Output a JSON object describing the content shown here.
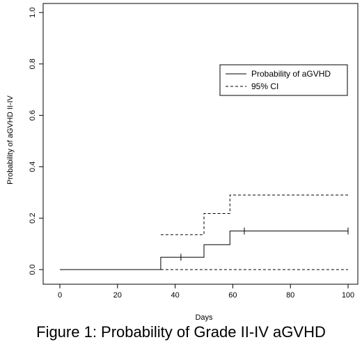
{
  "caption": "Figure 1: Probability of Grade II-IV aGVHD",
  "chart_data": {
    "type": "line",
    "step": true,
    "xlabel": "Days",
    "ylabel": "Probability of aGVHD II-IV",
    "xlim": [
      0,
      100
    ],
    "ylim": [
      0,
      1
    ],
    "x_ticks": [
      "0",
      "20",
      "40",
      "60",
      "80",
      "100"
    ],
    "y_ticks": [
      "0.0",
      "0.2",
      "0.4",
      "0.6",
      "0.8",
      "1.0"
    ],
    "grid": false,
    "legend_position": "top-right",
    "series": [
      {
        "name": "Probability of aGVHD",
        "style": "solid",
        "x": [
          0,
          35,
          50,
          59,
          100
        ],
        "y": [
          0,
          0.048,
          0.097,
          0.15,
          0.15
        ],
        "censor_x": [
          42,
          64,
          100
        ]
      },
      {
        "name": "95% CI",
        "style": "dashed",
        "x": [
          35,
          50,
          59,
          100
        ],
        "y": [
          0.136,
          0.218,
          0.29,
          0.29
        ]
      },
      {
        "name": "95% CI",
        "style": "dashed",
        "x": [
          35,
          100
        ],
        "y": [
          0,
          0
        ]
      }
    ],
    "colors": {
      "line": "#000000",
      "background": "#ffffff"
    }
  }
}
